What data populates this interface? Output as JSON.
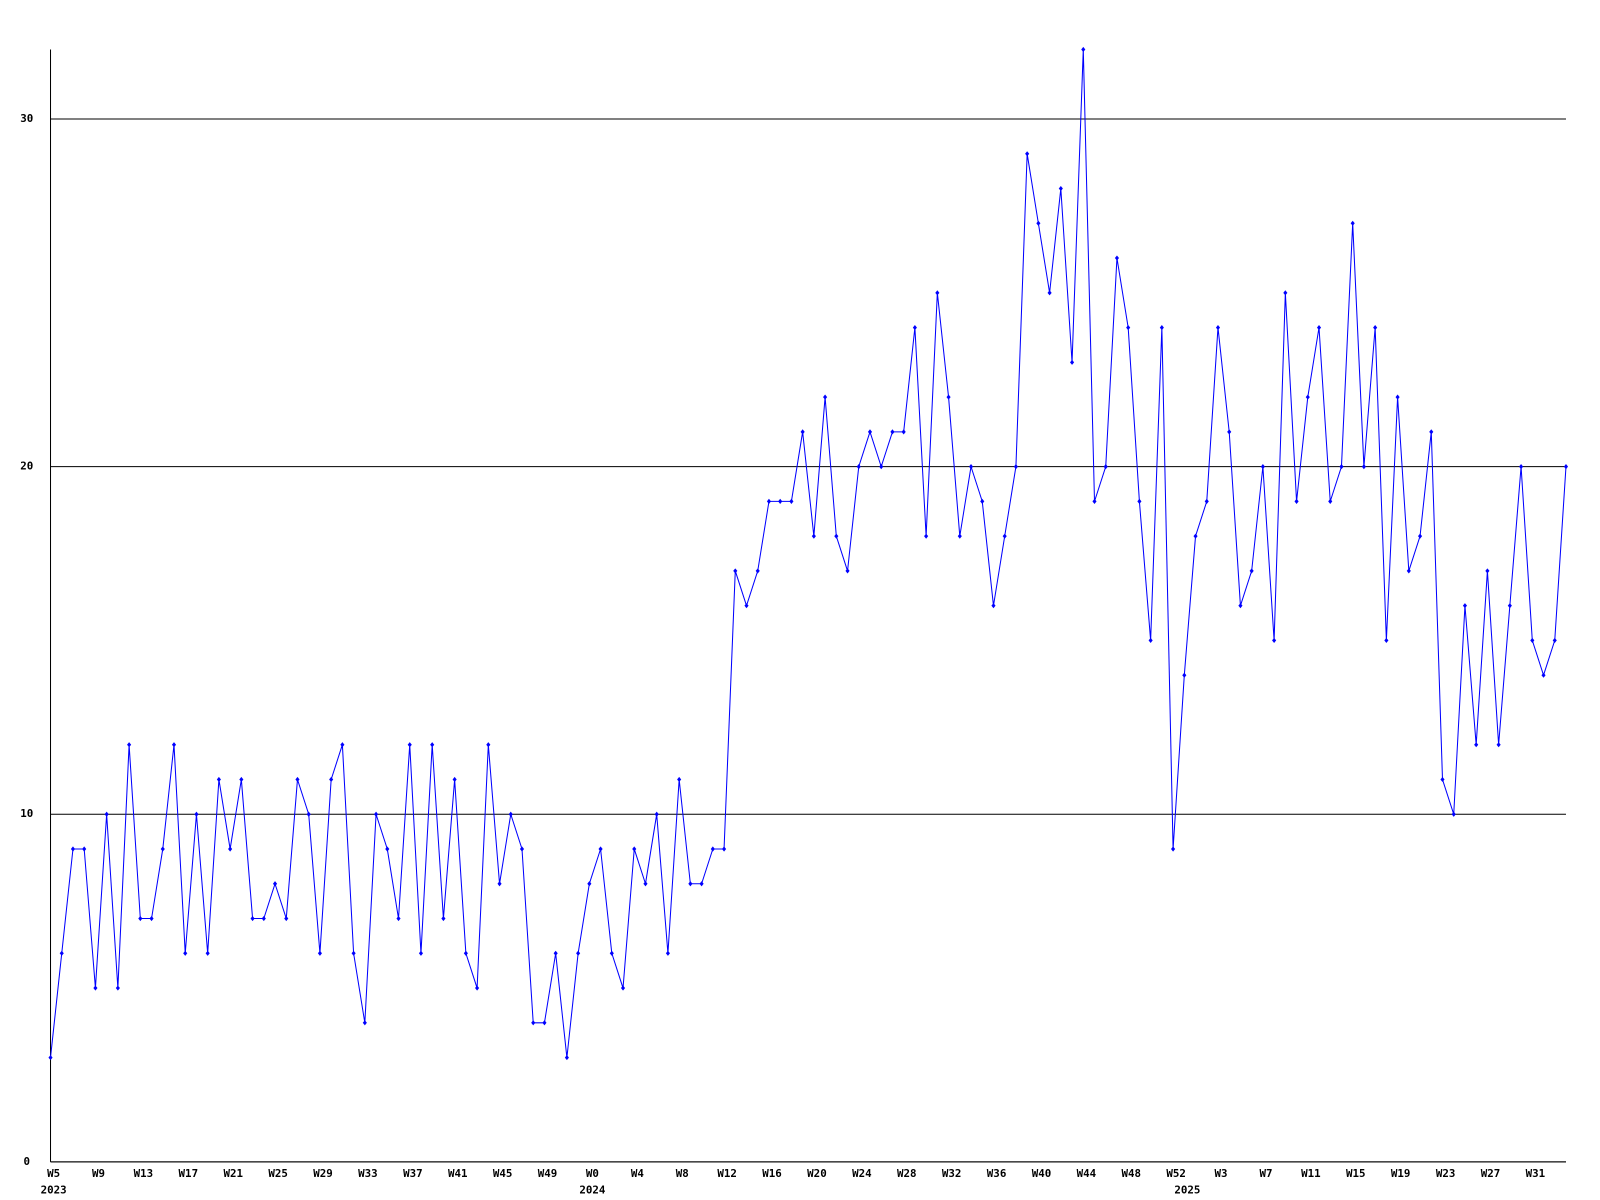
{
  "chart_data": {
    "type": "line",
    "categories": [
      "W5",
      null,
      null,
      null,
      "W9",
      null,
      null,
      null,
      "W13",
      null,
      null,
      null,
      "W17",
      null,
      null,
      null,
      "W21",
      null,
      null,
      null,
      "W25",
      null,
      null,
      null,
      "W29",
      null,
      null,
      null,
      "W33",
      null,
      null,
      null,
      "W37",
      null,
      null,
      null,
      "W41",
      null,
      null,
      null,
      "W45",
      null,
      null,
      null,
      "W49",
      null,
      null,
      null,
      "W0",
      null,
      null,
      null,
      "W4",
      null,
      null,
      null,
      "W8",
      null,
      null,
      null,
      "W12",
      null,
      null,
      null,
      "W16",
      null,
      null,
      null,
      "W20",
      null,
      null,
      null,
      "W24",
      null,
      null,
      null,
      "W28",
      null,
      null,
      null,
      "W32",
      null,
      null,
      null,
      "W36",
      null,
      null,
      null,
      "W40",
      null,
      null,
      null,
      "W44",
      null,
      null,
      null,
      "W48",
      null,
      null,
      null,
      "W52",
      null,
      null,
      null,
      "W3",
      null,
      null,
      null,
      "W7",
      null,
      null,
      null,
      "W11",
      null,
      null,
      null,
      "W15",
      null,
      null,
      null,
      "W19",
      null,
      null,
      null,
      "W23",
      null,
      null,
      null,
      "W27",
      null,
      null,
      null,
      "W31",
      null,
      null,
      null
    ],
    "year_categories": [
      "2023",
      null,
      null,
      null,
      null,
      null,
      null,
      null,
      null,
      null,
      null,
      null,
      null,
      null,
      null,
      null,
      null,
      null,
      null,
      null,
      null,
      null,
      null,
      null,
      null,
      null,
      null,
      null,
      null,
      null,
      null,
      null,
      null,
      null,
      null,
      null,
      null,
      null,
      null,
      null,
      null,
      null,
      null,
      null,
      null,
      null,
      null,
      null,
      "2024",
      null,
      null,
      null,
      null,
      null,
      null,
      null,
      null,
      null,
      null,
      null,
      null,
      null,
      null,
      null,
      null,
      null,
      null,
      null,
      null,
      null,
      null,
      null,
      null,
      null,
      null,
      null,
      null,
      null,
      null,
      null,
      null,
      null,
      null,
      null,
      null,
      null,
      null,
      null,
      null,
      null,
      null,
      null,
      null,
      null,
      null,
      null,
      null,
      null,
      null,
      null,
      null,
      "2025",
      null,
      null,
      null,
      null,
      null,
      null,
      null,
      null,
      null,
      null,
      null,
      null,
      null,
      null,
      null,
      null,
      null,
      null,
      null,
      null,
      null,
      null,
      null,
      null,
      null,
      null,
      null,
      null,
      null,
      null,
      null,
      null,
      null,
      null
    ],
    "series": [
      {
        "color": "#0000ff",
        "values": [
          3,
          6,
          9,
          9,
          5,
          10,
          5,
          12,
          7,
          7,
          9,
          12,
          6,
          10,
          6,
          11,
          9,
          11,
          7,
          7,
          8,
          7,
          11,
          10,
          6,
          11,
          12,
          6,
          4,
          10,
          9,
          7,
          12,
          6,
          12,
          7,
          11,
          6,
          5,
          12,
          8,
          10,
          9,
          4,
          4,
          6,
          3,
          6,
          8,
          9,
          6,
          5,
          9,
          8,
          10,
          6,
          11,
          8,
          8,
          9,
          9,
          17,
          16,
          17,
          19,
          19,
          19,
          21,
          18,
          22,
          18,
          17,
          20,
          21,
          20,
          21,
          21,
          24,
          18,
          25,
          22,
          18,
          20,
          19,
          16,
          18,
          20,
          29,
          27,
          25,
          28,
          23,
          32,
          19,
          20,
          26,
          24,
          19,
          15,
          24,
          9,
          14,
          18,
          19,
          24,
          21,
          16,
          17,
          20,
          15,
          25,
          19,
          22,
          24,
          19,
          20,
          27,
          20,
          24,
          15,
          22,
          17,
          18,
          21,
          11,
          10,
          16,
          12,
          17,
          12,
          16,
          20,
          15,
          14,
          15,
          20
        ]
      }
    ],
    "ylim": [
      0,
      32
    ],
    "yticks": [
      0,
      10,
      20,
      30
    ],
    "grid": true
  }
}
